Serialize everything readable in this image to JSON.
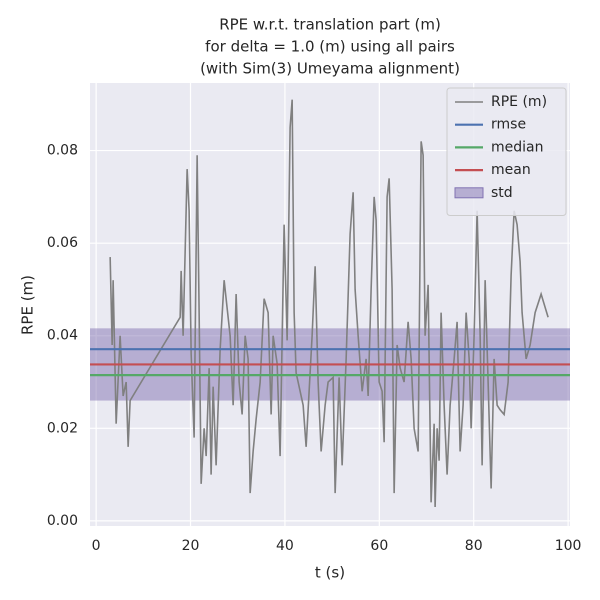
{
  "chart_data": {
    "type": "line",
    "title": [
      "RPE w.r.t. translation part (m)",
      "for delta = 1.0 (m) using all pairs",
      "(with Sim(3) Umeyama alignment)"
    ],
    "xlabel": "t (s)",
    "ylabel": "RPE (m)",
    "xlim": [
      -1.3,
      100.4
    ],
    "ylim": [
      -0.0011,
      0.0946
    ],
    "xticks": [
      0,
      20,
      40,
      60,
      80,
      100
    ],
    "yticks": [
      {
        "value": 0,
        "label": "0.00"
      },
      {
        "value": 0.02,
        "label": "0.02"
      },
      {
        "value": 0.04,
        "label": "0.04"
      },
      {
        "value": 0.06,
        "label": "0.06"
      },
      {
        "value": 0.08,
        "label": "0.08"
      }
    ],
    "grid": true,
    "legend": "upper right",
    "series": [
      {
        "name": "RPE (m)",
        "color": "#808080",
        "x": [
          2.97,
          3.39,
          3.6,
          4.24,
          5.08,
          5.72,
          6.36,
          6.78,
          7.2,
          17.8,
          18.01,
          18.43,
          19.28,
          19.7,
          20.13,
          20.76,
          21.4,
          21.82,
          22.25,
          22.88,
          23.31,
          23.94,
          24.36,
          24.79,
          25.42,
          26.27,
          27.12,
          27.75,
          28.39,
          29.03,
          29.66,
          30.3,
          30.93,
          31.57,
          32.2,
          32.63,
          33.26,
          33.9,
          34.75,
          35.59,
          36.44,
          37.08,
          37.5,
          38.35,
          38.98,
          39.83,
          40.47,
          41.1,
          41.53,
          41.95,
          42.37,
          43.01,
          43.86,
          44.49,
          45.76,
          46.4,
          47.03,
          47.67,
          48.52,
          49.15,
          50.21,
          50.64,
          51.48,
          52.12,
          52.97,
          53.81,
          54.45,
          54.87,
          55.51,
          56.36,
          57.2,
          57.63,
          58.26,
          58.9,
          59.32,
          59.96,
          60.59,
          61.02,
          61.65,
          62.08,
          62.71,
          63.14,
          63.77,
          64.41,
          65.25,
          66.1,
          66.74,
          67.37,
          68.22,
          68.86,
          69.28,
          69.7,
          70.34,
          70.97,
          71.61,
          71.82,
          72.25,
          72.67,
          73.09,
          73.73,
          74.36,
          75.0,
          75.85,
          76.48,
          77.12,
          77.75,
          78.39,
          79.03,
          79.45,
          80.08,
          80.72,
          81.36,
          81.78,
          82.42,
          83.05,
          83.69,
          84.32,
          84.96,
          85.59,
          86.44,
          87.29,
          87.92,
          88.56,
          89.19,
          89.83,
          90.25,
          91.1,
          91.95,
          93.01,
          94.28,
          95.76
        ],
        "values": [
          0.057,
          0.038,
          0.052,
          0.021,
          0.04,
          0.027,
          0.03,
          0.016,
          0.026,
          0.044,
          0.054,
          0.04,
          0.076,
          0.067,
          0.036,
          0.018,
          0.079,
          0.045,
          0.008,
          0.02,
          0.014,
          0.033,
          0.01,
          0.029,
          0.012,
          0.037,
          0.052,
          0.046,
          0.04,
          0.025,
          0.049,
          0.03,
          0.023,
          0.04,
          0.035,
          0.006,
          0.015,
          0.022,
          0.03,
          0.048,
          0.045,
          0.023,
          0.04,
          0.034,
          0.014,
          0.064,
          0.039,
          0.085,
          0.091,
          0.045,
          0.032,
          0.029,
          0.025,
          0.016,
          0.04,
          0.055,
          0.03,
          0.015,
          0.025,
          0.03,
          0.031,
          0.006,
          0.031,
          0.012,
          0.035,
          0.062,
          0.071,
          0.05,
          0.04,
          0.028,
          0.035,
          0.027,
          0.05,
          0.07,
          0.065,
          0.03,
          0.028,
          0.017,
          0.07,
          0.074,
          0.05,
          0.006,
          0.038,
          0.033,
          0.03,
          0.043,
          0.035,
          0.02,
          0.015,
          0.082,
          0.079,
          0.04,
          0.051,
          0.004,
          0.021,
          0.003,
          0.02,
          0.013,
          0.045,
          0.025,
          0.01,
          0.025,
          0.035,
          0.043,
          0.015,
          0.025,
          0.045,
          0.035,
          0.02,
          0.04,
          0.067,
          0.04,
          0.012,
          0.052,
          0.03,
          0.007,
          0.035,
          0.025,
          0.024,
          0.023,
          0.03,
          0.053,
          0.067,
          0.064,
          0.056,
          0.045,
          0.035,
          0.038,
          0.045,
          0.049,
          0.044
        ]
      }
    ],
    "statistics": [
      {
        "name": "rmse",
        "color": "#4c72b0",
        "value": 0.0371
      },
      {
        "name": "median",
        "color": "#55a868",
        "value": 0.0315
      },
      {
        "name": "mean",
        "color": "#c44e52",
        "value": 0.0338
      }
    ],
    "std": {
      "name": "std",
      "color": "#8172b2",
      "value": 0.0078
    }
  }
}
